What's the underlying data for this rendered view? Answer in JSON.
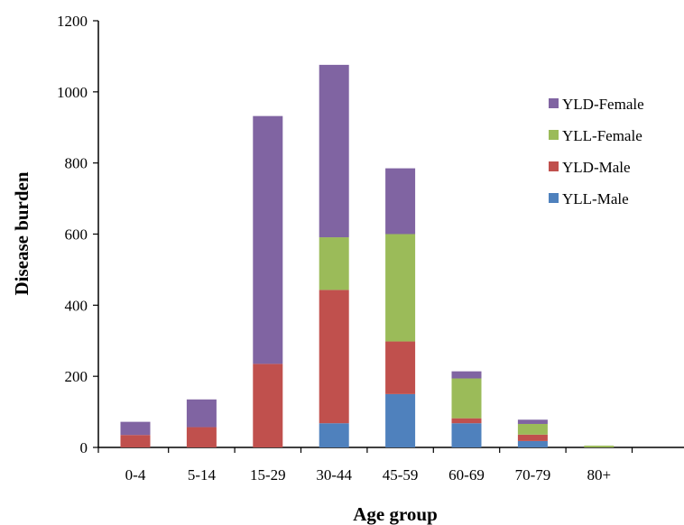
{
  "chart_data": {
    "type": "bar",
    "stacked": true,
    "title": "",
    "xlabel": "Age group",
    "ylabel": "Disease burden",
    "categories": [
      "0-4",
      "5-14",
      "15-29",
      "30-44",
      "45-59",
      "60-69",
      "70-79",
      "80+"
    ],
    "ylim": [
      0,
      1200
    ],
    "yticks": [
      0,
      200,
      400,
      600,
      800,
      1000,
      1200
    ],
    "grid": false,
    "legend_position": "right",
    "series": [
      {
        "name": "YLL-Male",
        "color": "#4F81BD",
        "values": [
          0,
          0,
          0,
          68,
          150,
          68,
          18,
          0
        ]
      },
      {
        "name": "YLD-Male",
        "color": "#C0504D",
        "values": [
          35,
          57,
          235,
          375,
          148,
          14,
          18,
          0
        ]
      },
      {
        "name": "YLL-Female",
        "color": "#9BBB59",
        "values": [
          0,
          0,
          0,
          148,
          302,
          112,
          30,
          5
        ]
      },
      {
        "name": "YLD-Female",
        "color": "#8064A2",
        "values": [
          37,
          78,
          697,
          485,
          185,
          20,
          12,
          0
        ]
      }
    ]
  }
}
